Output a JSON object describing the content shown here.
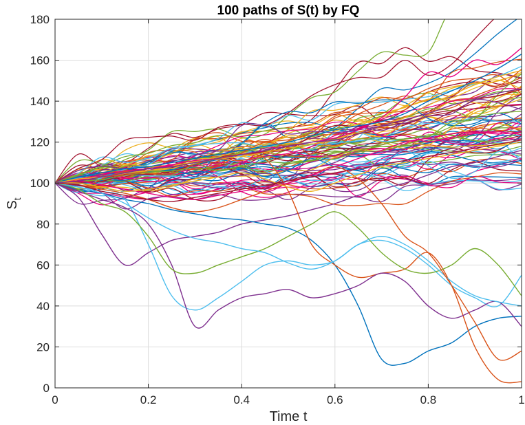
{
  "chart_data": {
    "type": "line",
    "title": "100 paths of S(t) by FQ",
    "xlabel": "Time t",
    "ylabel": "S",
    "ylabel_subscript": "t",
    "xlim": [
      0,
      1
    ],
    "ylim": [
      0,
      180
    ],
    "xticks": [
      0,
      0.2,
      0.4,
      0.6,
      0.8,
      1
    ],
    "xtick_labels": [
      "0",
      "0.2",
      "0.4",
      "0.6",
      "0.8",
      "1"
    ],
    "yticks": [
      0,
      20,
      40,
      60,
      80,
      100,
      120,
      140,
      160,
      180
    ],
    "ytick_labels": [
      "0",
      "20",
      "40",
      "60",
      "80",
      "100",
      "120",
      "140",
      "160",
      "180"
    ],
    "grid": true,
    "n_paths": 100,
    "colors": [
      "#0072BD",
      "#D95319",
      "#EDB120",
      "#7E2F8E",
      "#77AC30",
      "#4DBEEE",
      "#A2142F",
      "#E6007E"
    ],
    "x": [
      0,
      0.05,
      0.1,
      0.15,
      0.2,
      0.25,
      0.3,
      0.35,
      0.4,
      0.45,
      0.5,
      0.55,
      0.6,
      0.65,
      0.7,
      0.75,
      0.8,
      0.85,
      0.9,
      0.95,
      1
    ],
    "series": [
      {
        "name": "path-low-1",
        "color": "#7E2F8E",
        "values": [
          100,
          93,
          75,
          60,
          66,
          72,
          74,
          76,
          80,
          82,
          84,
          87,
          90,
          94,
          97,
          100,
          104,
          108,
          110,
          113,
          116
        ]
      },
      {
        "name": "path-low-2",
        "color": "#0072BD",
        "values": [
          100,
          97,
          95,
          92,
          90,
          87,
          85,
          83,
          82,
          80,
          78,
          72,
          60,
          40,
          14,
          12,
          18,
          22,
          30,
          34,
          35
        ]
      },
      {
        "name": "path-low-3",
        "color": "#D95319",
        "values": [
          100,
          101,
          103,
          104,
          106,
          108,
          110,
          112,
          114,
          112,
          96,
          70,
          60,
          54,
          56,
          58,
          66,
          50,
          20,
          4,
          3
        ]
      },
      {
        "name": "path-low-4",
        "color": "#4DBEEE",
        "values": [
          100,
          98,
          96,
          92,
          70,
          45,
          38,
          44,
          52,
          60,
          62,
          60,
          62,
          70,
          72,
          68,
          60,
          50,
          44,
          40,
          55
        ]
      },
      {
        "name": "path-low-5",
        "color": "#7E2F8E",
        "values": [
          100,
          96,
          92,
          88,
          80,
          60,
          30,
          38,
          44,
          46,
          48,
          44,
          46,
          50,
          56,
          52,
          40,
          34,
          38,
          42,
          30
        ]
      },
      {
        "name": "path-low-6",
        "color": "#77AC30",
        "values": [
          100,
          97,
          90,
          86,
          74,
          58,
          56,
          60,
          64,
          68,
          74,
          80,
          86,
          78,
          66,
          58,
          56,
          60,
          68,
          60,
          45
        ]
      },
      {
        "name": "path-low-7",
        "color": "#4DBEEE",
        "values": [
          100,
          98,
          95,
          90,
          83,
          77,
          73,
          71,
          68,
          66,
          61,
          58,
          62,
          70,
          74,
          70,
          62,
          52,
          45,
          42,
          40
        ]
      },
      {
        "name": "path-low-8",
        "color": "#D95319",
        "values": [
          100,
          99,
          97,
          95,
          92,
          88,
          86,
          88,
          92,
          96,
          100,
          104,
          108,
          102,
          90,
          74,
          66,
          50,
          32,
          14,
          18
        ]
      },
      {
        "name": "path-mid-1",
        "color": "#E6007E",
        "values": [
          100,
          101,
          99,
          97,
          95,
          93,
          92,
          94,
          96,
          98,
          100,
          104,
          108,
          112,
          116,
          120,
          122,
          124,
          125,
          124,
          125
        ]
      },
      {
        "name": "path-mid-2",
        "color": "#EDB120",
        "values": [
          100,
          100,
          98,
          96,
          97,
          99,
          101,
          103,
          105,
          102,
          98,
          96,
          100,
          104,
          108,
          110,
          112,
          114,
          116,
          118,
          120
        ]
      },
      {
        "name": "path-mid-3",
        "color": "#A2142F",
        "values": [
          100,
          99,
          96,
          94,
          92,
          91,
          93,
          95,
          97,
          99,
          101,
          103,
          105,
          107,
          109,
          111,
          113,
          115,
          117,
          119,
          121
        ]
      },
      {
        "name": "path-high-1",
        "color": "#E6007E",
        "values": [
          100,
          102,
          104,
          106,
          107,
          109,
          111,
          112,
          114,
          116,
          118,
          120,
          122,
          126,
          132,
          142,
          154,
          152,
          160,
          158,
          166
        ]
      },
      {
        "name": "path-high-2",
        "color": "#0072BD",
        "values": [
          100,
          103,
          105,
          107,
          108,
          110,
          112,
          114,
          116,
          118,
          120,
          123,
          126,
          128,
          130,
          134,
          140,
          145,
          150,
          156,
          163
        ]
      },
      {
        "name": "path-high-3",
        "color": "#EDB120",
        "values": [
          100,
          102,
          103,
          105,
          106,
          108,
          110,
          112,
          113,
          115,
          117,
          119,
          121,
          124,
          128,
          132,
          138,
          143,
          148,
          152,
          155
        ]
      },
      {
        "name": "path-high-4",
        "color": "#7E2F8E",
        "values": [
          100,
          101,
          103,
          105,
          107,
          108,
          110,
          112,
          114,
          116,
          118,
          120,
          121,
          124,
          128,
          131,
          134,
          138,
          141,
          144,
          146
        ]
      }
    ]
  }
}
